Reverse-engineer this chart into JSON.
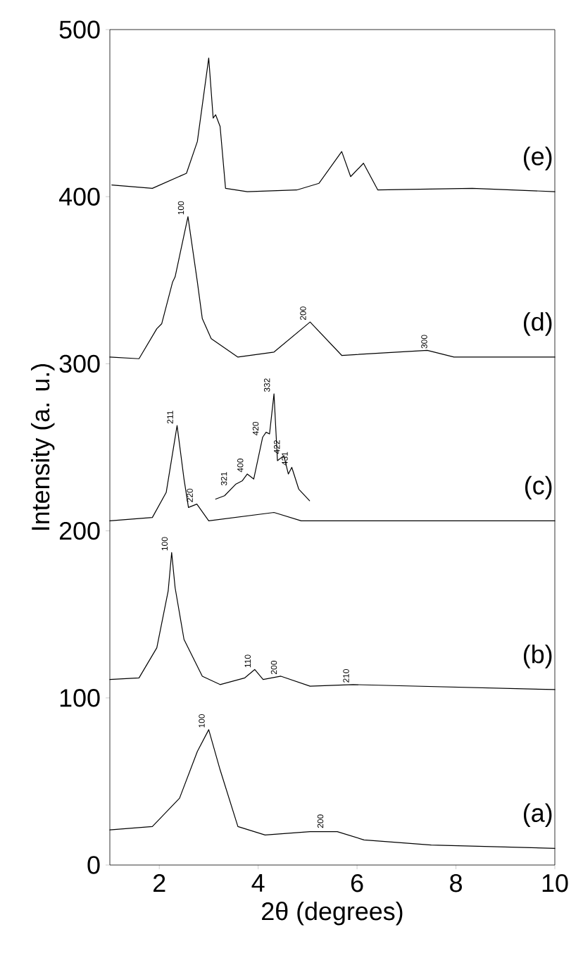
{
  "chart_data": {
    "type": "line",
    "xlabel": "2θ (degrees)",
    "ylabel": "Intensity (a. u.)",
    "xlim": [
      1,
      10
    ],
    "ylim": [
      0,
      500
    ],
    "xticks": [
      2,
      4,
      6,
      8,
      10
    ],
    "yticks": [
      0,
      100,
      200,
      300,
      400,
      500
    ],
    "marker": "none",
    "line_style": "solid",
    "series": [
      {
        "name": "(e)",
        "color": "#000000",
        "x": [
          1.04,
          1.86,
          2.55,
          2.77,
          3.0,
          3.09,
          3.14,
          3.23,
          3.34,
          3.78,
          4.78,
          5.23,
          5.69,
          5.87,
          6.13,
          6.42,
          8.33,
          10
        ],
        "values": [
          407,
          405,
          414,
          433,
          483,
          447,
          449,
          442,
          405,
          403,
          404,
          408,
          427,
          412,
          420,
          404,
          405,
          403
        ]
      },
      {
        "name": "(d)",
        "color": "#000000",
        "x": [
          1.0,
          1.59,
          1.95,
          2.05,
          2.27,
          2.32,
          2.58,
          2.77,
          2.87,
          3.05,
          3.59,
          4.32,
          5.05,
          5.69,
          7.42,
          7.96,
          10
        ],
        "values": [
          304,
          303,
          321,
          324,
          349,
          352,
          388,
          349,
          327,
          315,
          304,
          307,
          325,
          305,
          308,
          304,
          304
        ]
      },
      {
        "name": "(c)",
        "color": "#000000",
        "x": [
          1.0,
          1.86,
          2.14,
          2.36,
          2.5,
          2.59,
          2.76,
          3.0,
          4.32,
          4.87,
          10
        ],
        "values": [
          206,
          208,
          223,
          263,
          231,
          214,
          216,
          206,
          211,
          206,
          206
        ]
      },
      {
        "color": "#000000",
        "x": [
          3.14,
          3.32,
          3.55,
          3.68,
          3.78,
          3.91,
          4.09,
          4.16,
          4.23,
          4.32,
          4.39,
          4.52,
          4.61,
          4.68,
          4.82,
          5.04
        ],
        "values": [
          219,
          221,
          228,
          230,
          234,
          231,
          256,
          259,
          258,
          282,
          242,
          245,
          234,
          238,
          225,
          218
        ]
      },
      {
        "name": "(b)",
        "color": "#000000",
        "x": [
          1.0,
          1.59,
          1.95,
          2.18,
          2.25,
          2.32,
          2.5,
          2.87,
          3.23,
          3.73,
          3.93,
          4.1,
          4.46,
          5.05,
          5.92,
          10
        ],
        "values": [
          111,
          112,
          130,
          164,
          187,
          166,
          135,
          113,
          108,
          112,
          117,
          111,
          113,
          107,
          108,
          105
        ]
      },
      {
        "name": "(a)",
        "color": "#000000",
        "x": [
          1.0,
          1.86,
          2.41,
          2.77,
          3.0,
          3.23,
          3.59,
          4.14,
          5.05,
          5.6,
          6.14,
          7.5,
          10
        ],
        "values": [
          21,
          23,
          40,
          68,
          81,
          57,
          23,
          18,
          20,
          20,
          15,
          12,
          10
        ]
      }
    ],
    "annotations": [
      {
        "text": "100",
        "x": 2.58,
        "y": 388
      },
      {
        "text": "200",
        "x": 5.05,
        "y": 325
      },
      {
        "text": "300",
        "x": 7.5,
        "y": 308
      },
      {
        "text": "211",
        "x": 2.36,
        "y": 263
      },
      {
        "text": "220",
        "x": 2.76,
        "y": 216
      },
      {
        "text": "321",
        "x": 3.45,
        "y": 226
      },
      {
        "text": "400",
        "x": 3.78,
        "y": 234
      },
      {
        "text": "420",
        "x": 4.09,
        "y": 256
      },
      {
        "text": "332",
        "x": 4.32,
        "y": 282
      },
      {
        "text": "422",
        "x": 4.52,
        "y": 245
      },
      {
        "text": "431",
        "x": 4.68,
        "y": 238
      },
      {
        "text": "100",
        "x": 2.25,
        "y": 187
      },
      {
        "text": "110",
        "x": 3.93,
        "y": 117
      },
      {
        "text": "200",
        "x": 4.46,
        "y": 113
      },
      {
        "text": "210",
        "x": 5.92,
        "y": 108
      },
      {
        "text": "100",
        "x": 3.0,
        "y": 81
      },
      {
        "text": "200",
        "x": 5.4,
        "y": 21
      }
    ]
  }
}
